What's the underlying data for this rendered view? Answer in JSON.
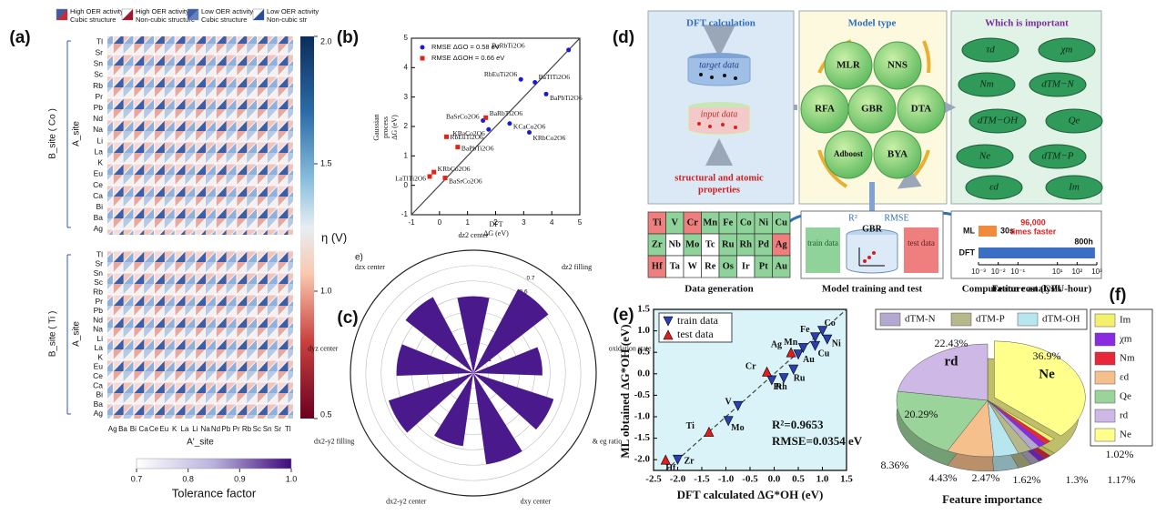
{
  "panel_a": {
    "label": "(a)",
    "legend": [
      [
        "High OER activity",
        "Cubic structure"
      ],
      [
        "High OER activity",
        "Non-cubic structure"
      ],
      [
        "Low OER activity",
        "Cubic structure"
      ],
      [
        "Low OER activity",
        "Non-cubic str"
      ]
    ],
    "blocks": [
      "B_site ( Co )",
      "B_site ( Ti )"
    ],
    "row_title": "A_site",
    "rows": [
      "Tl",
      "Sr",
      "Sn",
      "Sc",
      "Rb",
      "Pr",
      "Pb",
      "Nd",
      "Na",
      "Li",
      "La",
      "K",
      "Eu",
      "Ce",
      "Ca",
      "Bi",
      "Ba",
      "Ag"
    ],
    "x_labels": [
      "Ag",
      "Ba",
      "Bi",
      "Ca",
      "Ce",
      "Eu",
      "K",
      "La",
      "Li",
      "Na",
      "Nd",
      "Pb",
      "Pr",
      "Rb",
      "Sc",
      "Sn",
      "Sr",
      "Tl"
    ],
    "x_title": "A'_site",
    "colorbar": {
      "label": "η (V)",
      "lim": [
        0.5,
        2.0
      ],
      "ticks": [
        0.5,
        {
          "value": 1,
          "label": "1.0"
        },
        1.5,
        {
          "value": 2,
          "label": "2.0"
        }
      ]
    },
    "tolerance": {
      "label": "Tolerance factor",
      "lim": [
        0.7,
        1.0
      ],
      "ticks": [
        0.7,
        0.8,
        0.9,
        {
          "value": 1,
          "label": "1.0"
        }
      ]
    }
  },
  "panel_d": {
    "label": "(d)",
    "dft_box": {
      "title": "DFT calculation",
      "target": "target data",
      "input": "input data",
      "caption": [
        "structural and atomic",
        "properties"
      ]
    },
    "model_box": {
      "title": "Model type",
      "models": [
        "MLR",
        "NNS",
        "RFA",
        "GBR",
        "DTA",
        "Adboost",
        "BYA"
      ]
    },
    "feature_box": {
      "title": "Which is important",
      "features": [
        "τd",
        "χm",
        "Nm",
        "dTM−N",
        "dTM−OH",
        "Qe",
        "Ne",
        "dTM−P",
        "εd",
        "Im"
      ]
    },
    "elements": [
      [
        "Ti",
        "V",
        "Cr",
        "Mn",
        "Fe",
        "Co",
        "Ni",
        "Cu"
      ],
      [
        "Zr",
        "Nb",
        "Mo",
        "Tc",
        "Ru",
        "Rh",
        "Pd",
        "Ag"
      ],
      [
        "Hf",
        "Ta",
        "W",
        "Re",
        "Os",
        "Ir",
        "Pt",
        "Au"
      ]
    ],
    "element_colors": [
      [
        "#ef7f7f",
        "#8fd39a",
        "#ef7f7f",
        "#8fd39a",
        "#8fd39a",
        "#8fd39a",
        "#8fd39a",
        "#8fd39a"
      ],
      [
        "#8fd39a",
        "#ffffff",
        "#8fd39a",
        "#ffffff",
        "#8fd39a",
        "#8fd39a",
        "#8fd39a",
        "#ef7f7f"
      ],
      [
        "#ef7f7f",
        "#ffffff",
        "#ffffff",
        "#ffffff",
        "#8fd39a",
        "#ffffff",
        "#8fd39a",
        "#8fd39a"
      ]
    ],
    "training": {
      "r2": "R²",
      "rmse": "RMSE",
      "train": "train data",
      "model": "GBR",
      "test": "test data"
    },
    "captions": [
      "Data generation",
      "Model training and test",
      "Feature analysis"
    ]
  },
  "chart_data": [
    {
      "type": "scatter",
      "label": "(b)",
      "xlabel": [
        "DFT",
        "ΔG  (eV)"
      ],
      "ylabel": [
        "Gaussian",
        "process",
        "ΔG  (eV)"
      ],
      "xlim": [
        -1,
        5
      ],
      "ylim": [
        -1,
        5
      ],
      "xticks": [
        -1,
        0,
        1,
        2,
        3,
        4,
        5
      ],
      "yticks": [
        -1,
        0,
        1,
        2,
        3,
        4,
        5
      ],
      "diagonal": "solid",
      "series": [
        {
          "name": "RMSE ΔGO = 0.58 eV",
          "color": "#1a1ad6",
          "marker": "circle",
          "x": [
            4.6,
            2.9,
            3.4,
            3.8,
            1.55,
            2.5,
            1.75,
            3.2
          ],
          "y": [
            4.6,
            3.6,
            3.5,
            3.1,
            2.2,
            2.1,
            1.9,
            1.8
          ],
          "point_labels": [
            "BaRbTi2O6",
            "RbEuTi2O6",
            "BaTlTi2O6",
            "BaPbTi2O6",
            "BaSrCo2O6",
            "KCaCo2O6",
            "KBaCo2O6",
            "KRbCo2O6"
          ]
        },
        {
          "name": "RMSE ΔGOH = 0.66 eV",
          "color": "#e2231a",
          "marker": "square",
          "x": [
            1.65,
            0.25,
            0.65,
            -0.2,
            0.2,
            -0.35
          ],
          "y": [
            2.3,
            1.65,
            1.3,
            0.45,
            0.25,
            0.3
          ],
          "point_labels": [
            "BaRbTi2O6",
            "RbEuTi2O6",
            "BaPbTi2O6",
            "KRbCo2O6",
            "BaSrCo2O6",
            "LaTlTi2O6"
          ]
        }
      ]
    },
    {
      "type": "polar",
      "label": "(c)",
      "corner": "e)",
      "rlim": [
        0,
        0.8
      ],
      "rticks": [
        0.1,
        0.2,
        0.3,
        0.4,
        0.5,
        0.6,
        0.7
      ],
      "color": "#4a1a8c",
      "categories": [
        "dz2 center",
        "dz2 filling",
        "oxidation state (B)",
        "& eg ratio",
        "dxy center",
        "dx2-y2 center",
        "dx2-y2 filling",
        "dyz center",
        "dzx center"
      ],
      "values": [
        0.5,
        0.62,
        0.45,
        0.55,
        0.6,
        0.48,
        0.58,
        0.5,
        0.56
      ]
    },
    {
      "type": "bar",
      "orientation": "horizontal",
      "xscale": "log",
      "color_ml": "#f08a3c",
      "color": "#3a6fc4",
      "categories": [
        "ML",
        "DFT"
      ],
      "values": [
        0.00833,
        800
      ],
      "value_labels": [
        "30s",
        "800h"
      ],
      "colors": [
        "#f08a3c",
        "#3a6fc4"
      ],
      "xlim": [
        0.001,
        1000
      ],
      "xticks": [
        {
          "value": 0.001,
          "label": "10⁻³"
        },
        {
          "value": 0.01,
          "label": "10⁻²"
        },
        {
          "value": 0.1,
          "label": "10⁻¹"
        },
        {
          "value": 10,
          "label": "10¹"
        },
        {
          "value": 100,
          "label": "10²"
        },
        {
          "value": 1000,
          "label": "10³"
        }
      ],
      "annotations": [
        "96,000",
        "times faster"
      ],
      "caption": "Computation cost (CPU-hour)"
    },
    {
      "type": "scatter",
      "label": "(e)",
      "xlabel": [
        "DFT calculated ΔG*OH (eV)"
      ],
      "ylabel": [
        "ML obtained ΔG*OH (eV)"
      ],
      "background": "#d9f3f8",
      "xlim": [
        -2.5,
        1.5
      ],
      "ylim": [
        -2.25,
        1.5
      ],
      "diagonal": "dashed",
      "xticks": [
        -2.5,
        {
          "value": -2,
          "label": "-2.0"
        },
        -1.5,
        {
          "value": -1,
          "label": "-1.0"
        },
        -0.5,
        {
          "value": 0,
          "label": "0.0"
        },
        0.5,
        {
          "value": 1,
          "label": "1.0"
        },
        1.5
      ],
      "yticks": [
        {
          "value": -2,
          "label": "-2.0"
        },
        -1.5,
        {
          "value": -1,
          "label": "-1.0"
        },
        -0.5,
        {
          "value": 0,
          "label": "0.0"
        },
        0.5,
        {
          "value": 1,
          "label": "1.0"
        },
        1.5
      ],
      "series": [
        {
          "name": "train data",
          "color": "#2a3fb0",
          "marker": "triangle-down",
          "x": [
            -2.0,
            -0.95,
            -0.75,
            -0.05,
            0.2,
            0.4,
            0.5,
            0.6,
            0.85,
            0.85,
            1.0,
            1.1
          ],
          "y": [
            -2.0,
            -1.1,
            -0.75,
            -0.15,
            -0.1,
            0.1,
            0.45,
            0.6,
            0.65,
            0.85,
            1.0,
            0.8
          ],
          "point_labels": [
            "Zr",
            "Mo",
            "V",
            "Rh",
            "Pt",
            "Ru",
            "Au",
            "Mn",
            "Cu",
            "Fe",
            "Co",
            "Ni"
          ]
        },
        {
          "name": "test data",
          "color": "#e01e1e",
          "marker": "triangle-up",
          "x": [
            -2.25,
            -1.35,
            -0.15,
            0.35
          ],
          "y": [
            -2.0,
            -1.35,
            0.05,
            0.5
          ],
          "point_labels": [
            "Hf",
            "Ti",
            "Cr",
            "Ag"
          ]
        }
      ],
      "annotations": [
        "R²=0.9653",
        "RMSE=0.0354 eV"
      ]
    },
    {
      "type": "pie",
      "label": "(f)",
      "caption": "Feature importance",
      "categories": [
        "Ne",
        "Im",
        "Nm",
        "χm",
        "dTM-N",
        "dTM-P",
        "dTM-OH",
        "εd",
        "Qe",
        "rd"
      ],
      "values": [
        36.9,
        1.02,
        1.17,
        1.3,
        1.62,
        2.47,
        4.43,
        8.36,
        20.29,
        22.43
      ],
      "value_labels": [
        "36.9%",
        "1.02%",
        "1.17%",
        "1.3%",
        "1.62%",
        "2.47%",
        "4.43%",
        "8.36%",
        "20.29%",
        "22.43%"
      ],
      "colors": [
        "#ffff8c",
        "#f5f06a",
        "#e8283a",
        "#8a2be2",
        "#b3a8cf",
        "#b5b88a",
        "#b8e6ef",
        "#f6c08c",
        "#9ad49a",
        "#cdb8e6"
      ],
      "annotations": [
        "Ne",
        "rd"
      ]
    }
  ]
}
